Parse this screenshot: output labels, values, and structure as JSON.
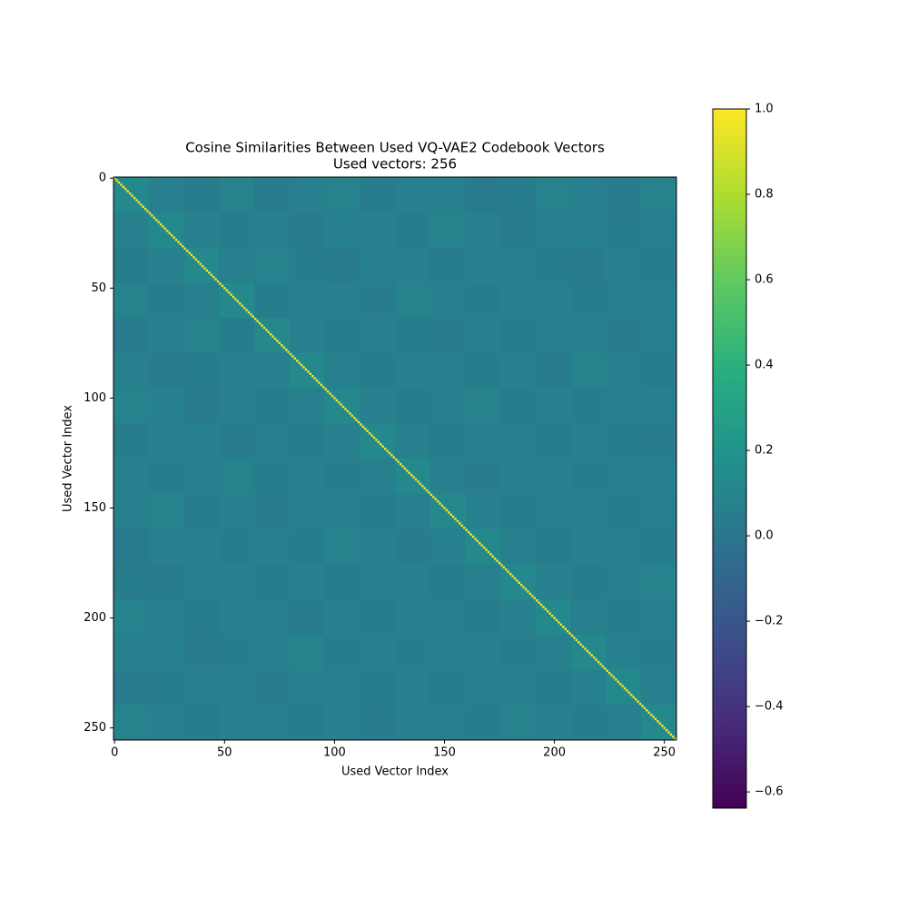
{
  "chart_data": {
    "type": "heatmap",
    "title": "Cosine Similarities Between Used VQ-VAE2 Codebook Vectors",
    "subtitle": "Used vectors: 256",
    "xlabel": "Used Vector Index",
    "ylabel": "Used Vector Index",
    "colormap": "viridis",
    "xlim": [
      -0.5,
      255.5
    ],
    "ylim": [
      255.5,
      -0.5
    ],
    "xticks": [
      0,
      50,
      100,
      150,
      200,
      250
    ],
    "yticks": [
      0,
      50,
      100,
      150,
      200,
      250
    ],
    "x_edges": [
      -0.5,
      15.5,
      31.5,
      47.5,
      63.5,
      79.5,
      95.5,
      111.5,
      127.5,
      143.5,
      159.5,
      175.5,
      191.5,
      207.5,
      223.5,
      239.5,
      255.5
    ],
    "y_edges": [
      -0.5,
      15.5,
      31.5,
      47.5,
      63.5,
      79.5,
      95.5,
      111.5,
      127.5,
      143.5,
      159.5,
      175.5,
      191.5,
      207.5,
      223.5,
      239.5,
      255.5
    ],
    "matrix": [
      [
        0.13,
        0.06,
        0.05,
        0.08,
        0.04,
        0.06,
        0.09,
        0.05,
        0.07,
        0.06,
        0.03,
        0.05,
        0.08,
        0.06,
        0.04,
        0.09
      ],
      [
        0.06,
        0.13,
        0.07,
        0.05,
        0.06,
        0.04,
        0.07,
        0.06,
        0.05,
        0.08,
        0.06,
        0.04,
        0.06,
        0.07,
        0.05,
        0.06
      ],
      [
        0.05,
        0.07,
        0.12,
        0.06,
        0.08,
        0.05,
        0.04,
        0.07,
        0.06,
        0.05,
        0.07,
        0.06,
        0.05,
        0.04,
        0.07,
        0.05
      ],
      [
        0.08,
        0.05,
        0.06,
        0.13,
        0.05,
        0.07,
        0.06,
        0.04,
        0.08,
        0.06,
        0.05,
        0.07,
        0.06,
        0.05,
        0.06,
        0.07
      ],
      [
        0.04,
        0.06,
        0.08,
        0.05,
        0.12,
        0.06,
        0.05,
        0.07,
        0.05,
        0.04,
        0.06,
        0.05,
        0.07,
        0.06,
        0.04,
        0.06
      ],
      [
        0.06,
        0.04,
        0.05,
        0.07,
        0.06,
        0.13,
        0.07,
        0.05,
        0.06,
        0.07,
        0.05,
        0.06,
        0.04,
        0.08,
        0.06,
        0.05
      ],
      [
        0.09,
        0.07,
        0.04,
        0.06,
        0.05,
        0.07,
        0.12,
        0.06,
        0.05,
        0.06,
        0.08,
        0.05,
        0.06,
        0.05,
        0.07,
        0.06
      ],
      [
        0.05,
        0.06,
        0.07,
        0.04,
        0.07,
        0.05,
        0.06,
        0.13,
        0.06,
        0.05,
        0.06,
        0.07,
        0.05,
        0.06,
        0.05,
        0.04
      ],
      [
        0.07,
        0.05,
        0.06,
        0.08,
        0.05,
        0.06,
        0.05,
        0.06,
        0.13,
        0.06,
        0.04,
        0.06,
        0.07,
        0.05,
        0.06,
        0.07
      ],
      [
        0.06,
        0.08,
        0.05,
        0.06,
        0.04,
        0.07,
        0.06,
        0.05,
        0.06,
        0.12,
        0.07,
        0.05,
        0.06,
        0.07,
        0.05,
        0.06
      ],
      [
        0.03,
        0.06,
        0.07,
        0.05,
        0.06,
        0.05,
        0.08,
        0.06,
        0.04,
        0.07,
        0.13,
        0.06,
        0.05,
        0.06,
        0.07,
        0.05
      ],
      [
        0.05,
        0.04,
        0.06,
        0.07,
        0.05,
        0.06,
        0.05,
        0.07,
        0.06,
        0.05,
        0.06,
        0.12,
        0.07,
        0.05,
        0.06,
        0.08
      ],
      [
        0.08,
        0.06,
        0.05,
        0.06,
        0.07,
        0.04,
        0.06,
        0.05,
        0.07,
        0.06,
        0.05,
        0.07,
        0.13,
        0.06,
        0.05,
        0.06
      ],
      [
        0.06,
        0.07,
        0.04,
        0.05,
        0.06,
        0.08,
        0.05,
        0.06,
        0.05,
        0.07,
        0.06,
        0.05,
        0.06,
        0.12,
        0.07,
        0.05
      ],
      [
        0.04,
        0.05,
        0.07,
        0.06,
        0.04,
        0.06,
        0.07,
        0.05,
        0.06,
        0.05,
        0.07,
        0.06,
        0.05,
        0.07,
        0.13,
        0.06
      ],
      [
        0.09,
        0.06,
        0.05,
        0.07,
        0.06,
        0.05,
        0.06,
        0.04,
        0.07,
        0.06,
        0.05,
        0.08,
        0.06,
        0.05,
        0.06,
        0.13
      ]
    ],
    "diagonal": [
      1,
      1,
      1,
      1,
      1,
      1,
      1,
      1,
      1,
      1,
      1,
      1,
      1,
      1,
      1,
      1,
      1,
      1,
      1,
      1,
      1,
      1,
      1,
      1,
      1,
      1,
      1,
      1,
      1,
      1,
      1,
      1,
      1,
      1,
      1,
      1,
      1,
      1,
      1,
      1,
      1,
      1,
      1,
      1,
      1,
      1,
      1,
      1,
      1,
      1,
      1,
      1,
      1,
      1,
      1,
      1,
      1,
      1,
      1,
      1,
      1,
      1,
      1,
      1,
      1,
      1,
      1,
      1,
      1,
      1,
      1,
      1,
      1,
      1,
      1,
      1,
      1,
      1,
      1,
      1,
      1,
      1,
      1,
      1,
      1,
      1,
      1,
      1,
      1,
      1,
      1,
      1,
      1,
      1,
      1,
      1,
      1,
      1,
      1,
      1,
      1,
      1,
      1,
      1,
      1,
      1,
      1,
      1,
      1,
      1,
      1,
      1,
      1,
      1,
      1,
      1,
      1,
      1,
      1,
      1,
      1,
      1,
      1,
      1,
      1,
      1,
      1,
      1,
      1,
      1,
      1,
      1,
      1,
      1,
      1,
      1,
      1,
      1,
      1,
      1,
      1,
      1,
      1,
      1,
      1,
      1,
      1,
      1,
      1,
      1,
      1,
      1,
      1,
      1,
      1,
      1,
      1,
      1,
      1,
      1,
      1,
      1,
      1,
      1,
      1,
      1,
      1,
      1,
      1,
      1,
      1,
      1,
      1,
      1,
      1,
      1,
      1,
      1,
      1,
      1,
      1,
      1,
      1,
      1,
      1,
      1,
      1,
      1,
      1,
      1,
      1,
      1,
      1,
      1,
      1,
      1,
      1,
      1,
      1,
      1,
      1,
      1,
      1,
      1,
      1,
      1,
      1,
      1,
      1,
      1,
      1,
      1,
      1,
      1,
      1,
      1,
      1,
      1,
      1,
      1,
      1,
      1,
      1,
      1,
      1,
      1,
      1,
      1,
      1,
      1,
      1,
      1,
      1,
      1,
      1,
      1,
      1,
      1,
      1,
      1,
      1,
      1,
      1,
      1,
      1,
      1,
      1,
      1,
      1,
      1,
      1,
      1,
      1,
      1,
      1,
      1
    ],
    "clim": [
      -0.638,
      1.0
    ],
    "cticks": [
      {
        "value": -0.6,
        "label": "−0.6"
      },
      {
        "value": -0.4,
        "label": "−0.4"
      },
      {
        "value": -0.2,
        "label": "−0.2"
      },
      {
        "value": 0,
        "label": "0.0"
      },
      0.2,
      0.4,
      0.6,
      0.8,
      {
        "value": 1,
        "label": "1.0"
      }
    ]
  }
}
